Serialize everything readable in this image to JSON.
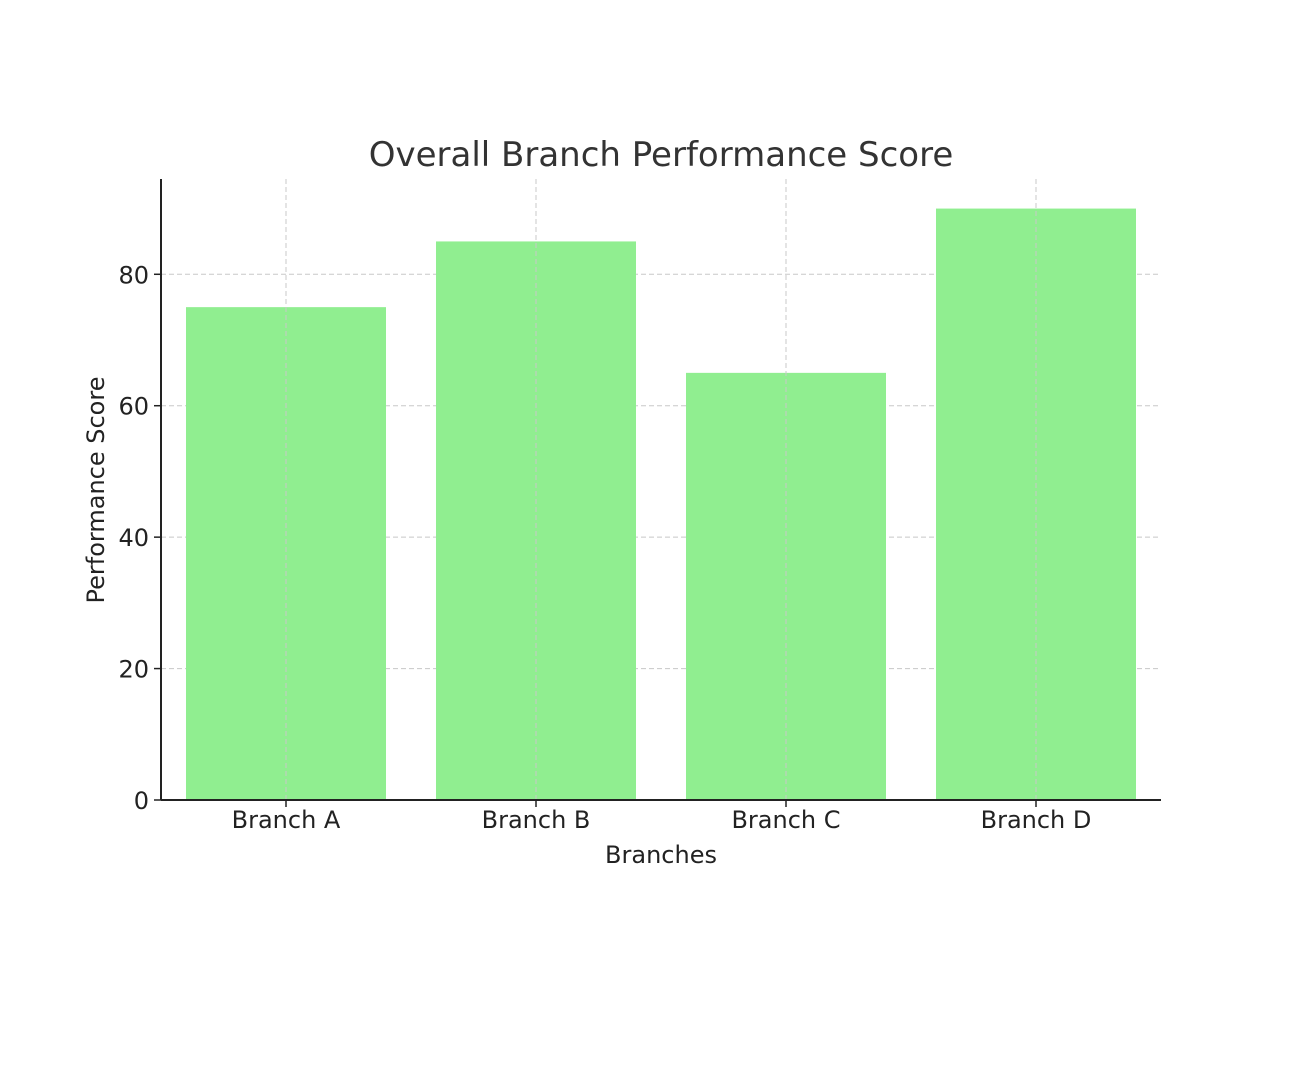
{
  "chart_data": {
    "type": "bar",
    "title": "Overall Branch Performance Score",
    "xlabel": "Branches",
    "ylabel": "Performance Score",
    "categories": [
      "Branch A",
      "Branch B",
      "Branch C",
      "Branch D"
    ],
    "values": [
      75,
      85,
      65,
      90
    ],
    "ylim": [
      0,
      94.5
    ],
    "yticks": [
      0,
      20,
      40,
      60,
      80
    ],
    "grid": true,
    "bar_color": "#90EE90"
  }
}
